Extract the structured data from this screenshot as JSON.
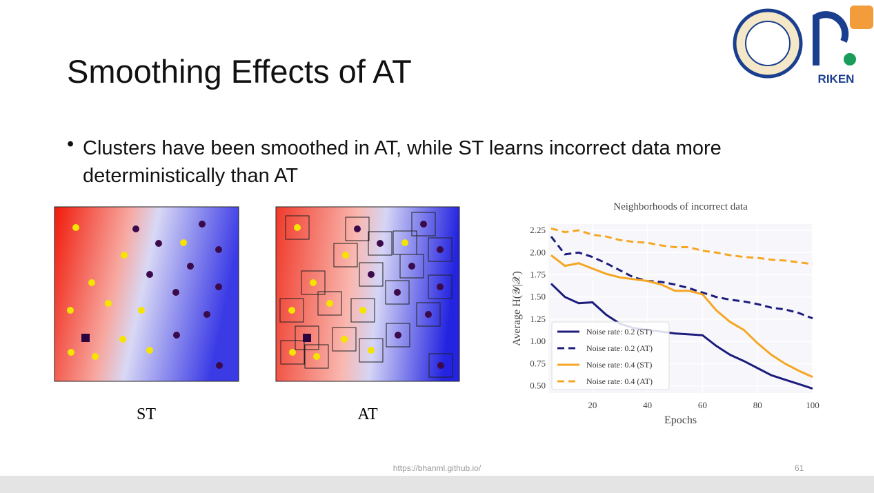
{
  "title": "Smoothing Effects of AT",
  "bullet": "Clusters have been smoothed in AT, while ST learns incorrect data more deterministically than AT",
  "figures": [
    {
      "caption": "ST"
    },
    {
      "caption": "AT"
    }
  ],
  "logo_text": "RIKEN",
  "footer": {
    "url": "https://bhanml.github.io/",
    "page": "61"
  },
  "chart_data": {
    "type": "line",
    "title": "Neighborhoods of incorrect data",
    "x_label": "Epochs",
    "y_label": "Average H(𝒴|𝒳)",
    "x": [
      5,
      10,
      15,
      20,
      25,
      30,
      35,
      40,
      45,
      50,
      55,
      60,
      65,
      70,
      75,
      80,
      85,
      90,
      95,
      100
    ],
    "series": [
      {
        "name": "Noise rate: 0.2 (ST)",
        "color": "#1c1c7c",
        "style": "solid",
        "values": [
          1.65,
          1.5,
          1.43,
          1.44,
          1.3,
          1.2,
          1.15,
          1.13,
          1.11,
          1.09,
          1.08,
          1.07,
          0.95,
          0.85,
          0.78,
          0.7,
          0.62,
          0.57,
          0.52,
          0.47
        ]
      },
      {
        "name": "Noise rate: 0.2 (AT)",
        "color": "#1c1c7c",
        "style": "dashed",
        "values": [
          2.18,
          1.98,
          2.0,
          1.95,
          1.88,
          1.8,
          1.72,
          1.68,
          1.67,
          1.64,
          1.6,
          1.55,
          1.5,
          1.47,
          1.45,
          1.42,
          1.38,
          1.36,
          1.32,
          1.26
        ]
      },
      {
        "name": "Noise rate: 0.4 (ST)",
        "color": "#f5a623",
        "style": "solid",
        "values": [
          1.97,
          1.85,
          1.88,
          1.82,
          1.76,
          1.72,
          1.7,
          1.68,
          1.64,
          1.57,
          1.57,
          1.53,
          1.35,
          1.22,
          1.13,
          0.98,
          0.85,
          0.75,
          0.67,
          0.6
        ]
      },
      {
        "name": "Noise rate: 0.4 (AT)",
        "color": "#f5a623",
        "style": "dashed",
        "values": [
          2.27,
          2.23,
          2.25,
          2.2,
          2.18,
          2.14,
          2.12,
          2.11,
          2.08,
          2.06,
          2.06,
          2.02,
          2.0,
          1.97,
          1.95,
          1.94,
          1.92,
          1.91,
          1.89,
          1.87
        ]
      }
    ],
    "xlim": [
      4,
      100
    ],
    "xticks": [
      20,
      40,
      60,
      80,
      100
    ],
    "ylim": [
      0.42,
      2.32
    ],
    "yticks": [
      {
        "value": 0.5,
        "label": "0.50"
      },
      0.75,
      {
        "value": 1.0,
        "label": "1.00"
      },
      1.25,
      {
        "value": 1.5,
        "label": "1.50"
      },
      1.75,
      {
        "value": 2.0,
        "label": "2.00"
      },
      2.25
    ],
    "grid": true,
    "legend": "lower left"
  }
}
